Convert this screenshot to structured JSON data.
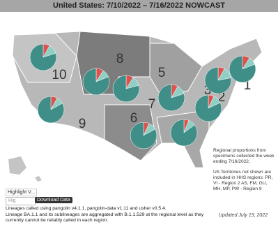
{
  "header": {
    "title": "United States: 7/10/2022 – 7/16/2022 NOWCAST"
  },
  "slice_colors": [
    "#d9534f",
    "#8fcfc6",
    "#3f8f88"
  ],
  "regions": [
    {
      "label": "10",
      "values": [
        8,
        12,
        80
      ]
    },
    {
      "label": "8",
      "values": [
        9,
        10,
        81
      ]
    },
    {
      "label": "7",
      "values": [
        9,
        12,
        79
      ]
    },
    {
      "label": "5",
      "values": [
        8,
        12,
        80
      ]
    },
    {
      "label": "2",
      "values": [
        8,
        14,
        78
      ]
    },
    {
      "label": "1",
      "values": [
        9,
        10,
        81
      ]
    },
    {
      "label": "3",
      "values": [
        7,
        11,
        82
      ]
    },
    {
      "label": "9",
      "values": [
        8,
        9,
        83
      ]
    },
    {
      "label": "6",
      "values": [
        7,
        10,
        83
      ]
    },
    {
      "label": "4",
      "values": [
        6,
        9,
        85
      ]
    }
  ],
  "notes": {
    "regional": "Regional proportions from specimens collected the week ending 7/16/2022.",
    "territories": "US Territories not shown are included in HHS regions: PR, VI - Region 2 AS, FM, GU, MH, MP, PW - Region 9"
  },
  "controls": {
    "highlight": "Highlight V...",
    "search": "Hig",
    "download": "Download Data"
  },
  "footer": {
    "lines": [
      "Lineages called using pangolin v4.1.1, pangolin-data v1.11 and usher v0.5.4.",
      "Lineage BA.1.1 and its sublineages are aggregated with B.1.1.529 at the regional level as they currently cannot be reliably called in each region."
    ],
    "updated": "Updated July 19, 2022"
  }
}
